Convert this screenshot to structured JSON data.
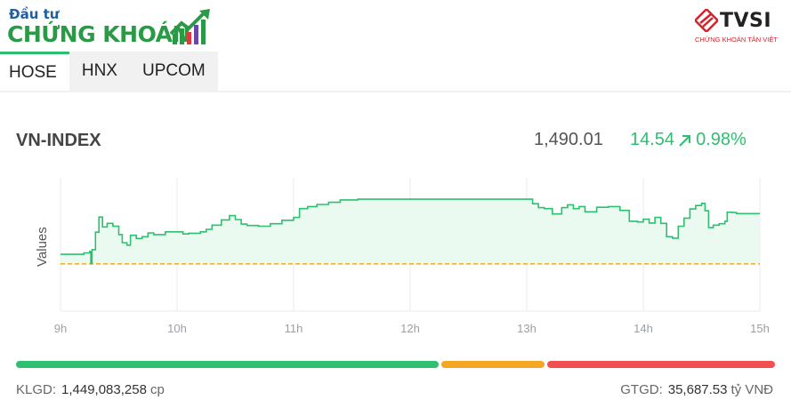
{
  "brand_left": {
    "line1": "Đầu tư",
    "line2": "CHỨNG KHOÁN"
  },
  "brand_right": {
    "name": "TVSI",
    "tagline": "CHỨNG KHOÁN TÂN VIỆT"
  },
  "tabs": [
    {
      "label": "HOSE",
      "active": true
    },
    {
      "label": "HNX",
      "active": false
    },
    {
      "label": "UPCOM",
      "active": false
    }
  ],
  "index": {
    "name": "VN-INDEX",
    "value": "1,490.01",
    "change": "14.54",
    "change_pct": "0.98%",
    "direction": "up"
  },
  "colors": {
    "up": "#2fbf71",
    "reference": "#f5a623",
    "down": "#f05050"
  },
  "chart_data": {
    "type": "area",
    "ylabel": "Values",
    "xlabel": "",
    "x_ticks": [
      "9h",
      "10h",
      "11h",
      "12h",
      "13h",
      "14h",
      "15h"
    ],
    "x_range": [
      9,
      15
    ],
    "y_range": [
      1462,
      1500
    ],
    "reference": 1475.47,
    "series": [
      {
        "values": [
          [
            9.0,
            1478.2
          ],
          [
            9.2,
            1478.6
          ],
          [
            9.25,
            1479.0
          ],
          [
            9.26,
            1475.5
          ],
          [
            9.27,
            1479.5
          ],
          [
            9.3,
            1484.5
          ],
          [
            9.33,
            1488.8
          ],
          [
            9.36,
            1486.0
          ],
          [
            9.4,
            1487.0
          ],
          [
            9.45,
            1486.2
          ],
          [
            9.5,
            1483.8
          ],
          [
            9.53,
            1481.5
          ],
          [
            9.57,
            1480.8
          ],
          [
            9.6,
            1483.6
          ],
          [
            9.65,
            1482.7
          ],
          [
            9.7,
            1483.2
          ],
          [
            9.75,
            1484.3
          ],
          [
            9.8,
            1483.8
          ],
          [
            9.9,
            1484.6
          ],
          [
            10.0,
            1484.6
          ],
          [
            10.05,
            1484.0
          ],
          [
            10.1,
            1484.2
          ],
          [
            10.2,
            1484.6
          ],
          [
            10.25,
            1485.3
          ],
          [
            10.3,
            1486.5
          ],
          [
            10.38,
            1488.0
          ],
          [
            10.45,
            1489.2
          ],
          [
            10.5,
            1488.1
          ],
          [
            10.55,
            1486.8
          ],
          [
            10.6,
            1486.4
          ],
          [
            10.7,
            1486.2
          ],
          [
            10.8,
            1486.9
          ],
          [
            10.9,
            1487.9
          ],
          [
            11.0,
            1488.7
          ],
          [
            11.05,
            1491.2
          ],
          [
            11.12,
            1491.8
          ],
          [
            11.2,
            1492.4
          ],
          [
            11.3,
            1493.0
          ],
          [
            11.4,
            1493.7
          ],
          [
            11.55,
            1493.9
          ],
          [
            12.0,
            1493.9
          ],
          [
            12.5,
            1493.9
          ],
          [
            13.0,
            1493.9
          ],
          [
            13.05,
            1492.6
          ],
          [
            13.1,
            1491.5
          ],
          [
            13.15,
            1491.2
          ],
          [
            13.22,
            1489.7
          ],
          [
            13.3,
            1491.5
          ],
          [
            13.35,
            1492.3
          ],
          [
            13.4,
            1491.2
          ],
          [
            13.45,
            1491.8
          ],
          [
            13.5,
            1490.3
          ],
          [
            13.6,
            1491.6
          ],
          [
            13.7,
            1491.8
          ],
          [
            13.8,
            1490.7
          ],
          [
            13.88,
            1487.6
          ],
          [
            13.95,
            1487.4
          ],
          [
            14.0,
            1488.2
          ],
          [
            14.05,
            1487.1
          ],
          [
            14.1,
            1488.7
          ],
          [
            14.15,
            1487.0
          ],
          [
            14.2,
            1483.2
          ],
          [
            14.25,
            1482.8
          ],
          [
            14.3,
            1486.2
          ],
          [
            14.35,
            1488.5
          ],
          [
            14.4,
            1491.1
          ],
          [
            14.45,
            1492.1
          ],
          [
            14.5,
            1492.7
          ],
          [
            14.53,
            1490.6
          ],
          [
            14.56,
            1485.8
          ],
          [
            14.6,
            1486.5
          ],
          [
            14.65,
            1486.9
          ],
          [
            14.7,
            1487.6
          ],
          [
            14.72,
            1490.2
          ],
          [
            14.76,
            1490.1
          ],
          [
            14.8,
            1489.8
          ],
          [
            15.0,
            1489.8
          ]
        ]
      }
    ]
  },
  "breadth": {
    "up_fraction": 0.56,
    "unchanged_fraction": 0.14,
    "down_fraction": 0.3
  },
  "footer": {
    "klgd_label": "KLGD:",
    "klgd_value": "1,449,083,258",
    "klgd_unit": "cp",
    "gtgd_label": "GTGD:",
    "gtgd_value": "35,687.53",
    "gtgd_unit": "tỷ VNĐ"
  }
}
